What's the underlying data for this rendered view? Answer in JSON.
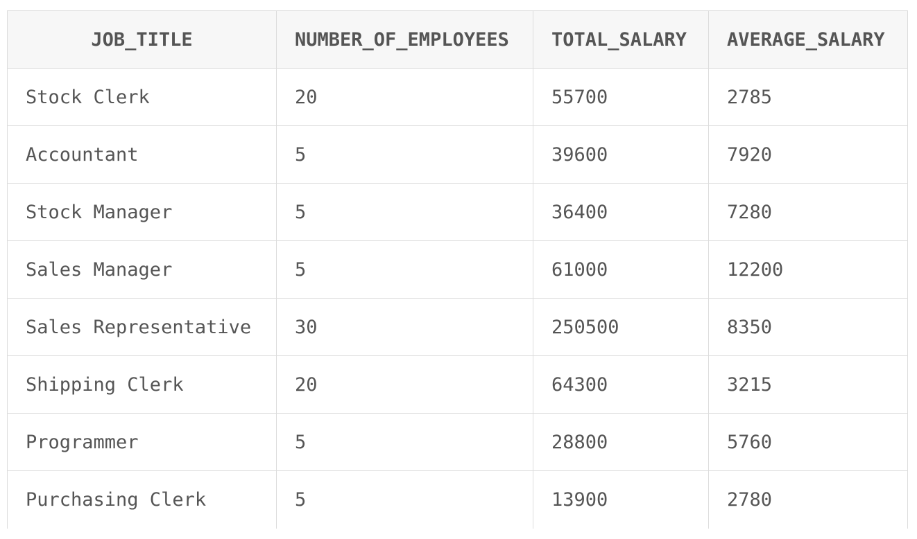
{
  "table": {
    "headers": [
      "JOB_TITLE",
      "NUMBER_OF_EMPLOYEES",
      "TOTAL_SALARY",
      "AVERAGE_SALARY"
    ],
    "rows": [
      [
        "Stock Clerk",
        "20",
        "55700",
        "2785"
      ],
      [
        "Accountant",
        "5",
        "39600",
        "7920"
      ],
      [
        "Stock Manager",
        "5",
        "36400",
        "7280"
      ],
      [
        "Sales Manager",
        "5",
        "61000",
        "12200"
      ],
      [
        "Sales Representative",
        "30",
        "250500",
        "8350"
      ],
      [
        "Shipping Clerk",
        "20",
        "64300",
        "3215"
      ],
      [
        "Programmer",
        "5",
        "28800",
        "5760"
      ],
      [
        "Purchasing Clerk",
        "5",
        "13900",
        "2780"
      ]
    ]
  }
}
